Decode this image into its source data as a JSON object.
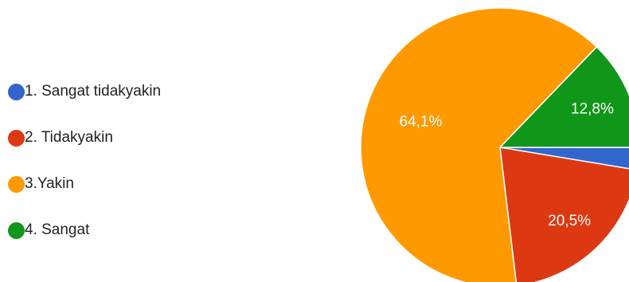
{
  "chart_data": {
    "type": "pie",
    "title": "",
    "categories": [
      "1. Sangat tidakyakin",
      "2. Tidakyakin",
      "3.Yakin",
      "4. Sangat"
    ],
    "values": [
      2.6,
      20.5,
      64.1,
      12.8
    ],
    "slice_labels": [
      "",
      "20,5%",
      "64,1%",
      "12,8%"
    ],
    "colors": [
      "#3366cc",
      "#dc3912",
      "#ff9900",
      "#109618"
    ],
    "legend_position": "left"
  }
}
